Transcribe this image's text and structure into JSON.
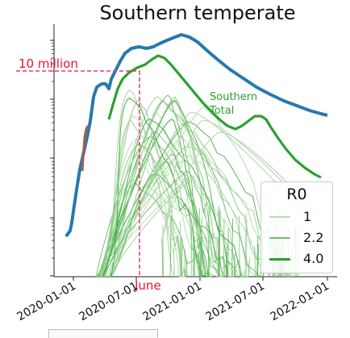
{
  "chart_data": {
    "type": "line",
    "title": "Southern temperate",
    "xlabel": "",
    "ylabel": "",
    "y_scale": "log",
    "x_tick_labels": [
      "2020-01-01",
      "2020-07-01",
      "2021-01-01",
      "2021-07-01",
      "2022-01-01"
    ],
    "x_range": [
      "2019-11-15",
      "2022-02-01"
    ],
    "annotations": {
      "threshold_label": "10 million",
      "threshold_value": 10000000,
      "date_label": "June",
      "date_value": "2020-06-01",
      "total_label_line1": "Southern",
      "total_label_line2": "Total"
    },
    "legend": {
      "title": "R0",
      "placement": "lower-right",
      "entries": [
        {
          "label": "1",
          "color": "#b5dcb0"
        },
        {
          "label": "2.2",
          "color": "#6fbf6a"
        },
        {
          "label": "4.0",
          "color": "#2ca02c"
        }
      ]
    },
    "series": [
      {
        "name": "Southern Total",
        "color": "#2ca02c"
      }
    ],
    "colors": {
      "total_blue": "#2878b0",
      "total_green": "#2ca02c",
      "early_brown": "#a0604a",
      "annotation_red": "#ee1133",
      "annotation_pink": "#ee3377",
      "total_label_green": "#2ca02c"
    }
  }
}
